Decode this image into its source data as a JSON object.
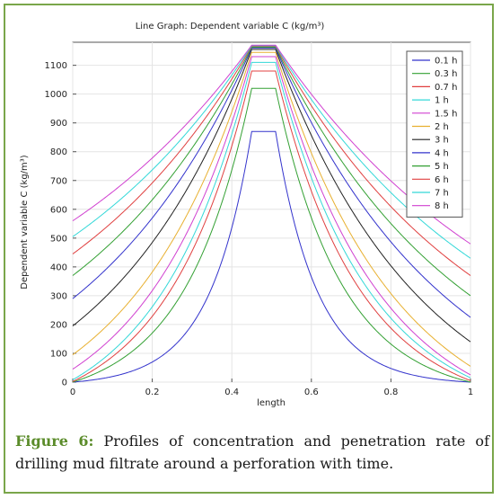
{
  "caption": {
    "label": "Figure 6:",
    "text": "Profiles of concentration and penetration rate of drilling mud filtrate around a perforation with time."
  },
  "chart_data": {
    "type": "line",
    "title": "Line Graph: Dependent variable C (kg/m³)",
    "xlabel": "length",
    "ylabel": "Dependent variable C (kg/m³)",
    "xlim": [
      0,
      1
    ],
    "ylim": [
      0,
      1180
    ],
    "xticks": [
      "0",
      "0.2",
      "0.4",
      "0.6",
      "0.8",
      "1"
    ],
    "yticks": [
      "0",
      "100",
      "200",
      "300",
      "400",
      "500",
      "600",
      "700",
      "800",
      "900",
      "1000",
      "1100"
    ],
    "grid": true,
    "legend_position": "top-right",
    "series": [
      {
        "name": "0.1 h",
        "color": "#3333cc",
        "peak": 870,
        "left_edge": 0,
        "right_edge": 0,
        "k": 9.5
      },
      {
        "name": "0.3 h",
        "color": "#33a033",
        "peak": 1020,
        "left_edge": 0,
        "right_edge": 0,
        "k": 6.0
      },
      {
        "name": "0.7 h",
        "color": "#e04040",
        "peak": 1080,
        "left_edge": 2,
        "right_edge": 5,
        "k": 4.8
      },
      {
        "name": "1 h",
        "color": "#33d8d8",
        "peak": 1110,
        "left_edge": 8,
        "right_edge": 15,
        "k": 4.3
      },
      {
        "name": "1.5 h",
        "color": "#d040d0",
        "peak": 1130,
        "left_edge": 45,
        "right_edge": 25,
        "k": 3.8
      },
      {
        "name": "2 h",
        "color": "#e8b030",
        "peak": 1145,
        "left_edge": 95,
        "right_edge": 55,
        "k": 3.3
      },
      {
        "name": "3 h",
        "color": "#222222",
        "peak": 1155,
        "left_edge": 195,
        "right_edge": 140,
        "k": 2.7
      },
      {
        "name": "4 h",
        "color": "#3333cc",
        "peak": 1160,
        "left_edge": 290,
        "right_edge": 225,
        "k": 2.3
      },
      {
        "name": "5 h",
        "color": "#33a033",
        "peak": 1163,
        "left_edge": 370,
        "right_edge": 300,
        "k": 2.1
      },
      {
        "name": "6 h",
        "color": "#e04040",
        "peak": 1166,
        "left_edge": 445,
        "right_edge": 370,
        "k": 1.9
      },
      {
        "name": "7 h",
        "color": "#33d8d8",
        "peak": 1168,
        "left_edge": 505,
        "right_edge": 430,
        "k": 1.75
      },
      {
        "name": "8 h",
        "color": "#d040d0",
        "peak": 1170,
        "left_edge": 560,
        "right_edge": 480,
        "k": 1.6
      }
    ],
    "plateau": [
      0.45,
      0.51
    ]
  }
}
